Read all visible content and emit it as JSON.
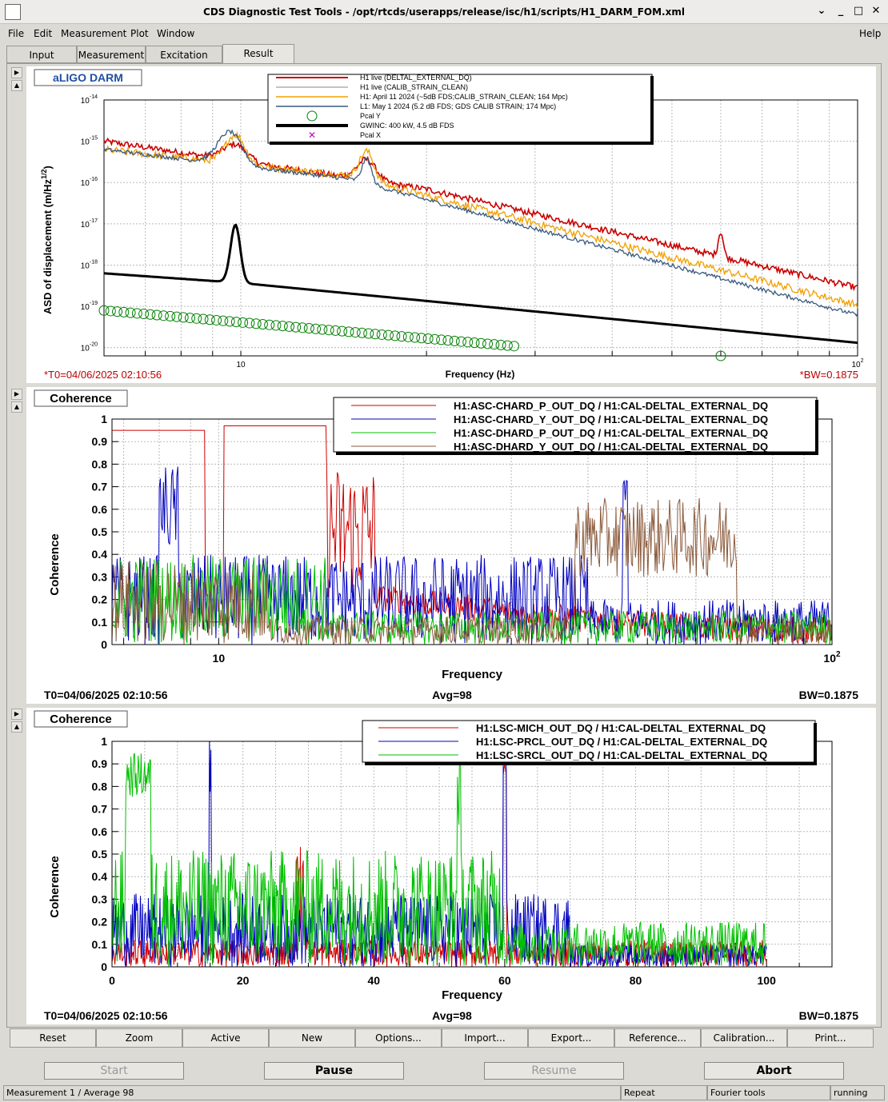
{
  "window": {
    "title": "CDS Diagnostic Test Tools - /opt/rtcds/userapps/release/isc/h1/scripts/H1_DARM_FOM.xml"
  },
  "menu": [
    "File",
    "Edit",
    "Measurement",
    "Plot",
    "Window",
    "Help"
  ],
  "tabs": [
    "Input",
    "Measurement",
    "Excitation",
    "Result"
  ],
  "plot1": {
    "title": "aLIGO DARM",
    "ylabel": "ASD of displacement (m/Hz",
    "ylabel_sup": "1/2",
    "ylabel_end": ")",
    "xlabel": "Frequency (Hz)",
    "t0": "*T0=04/06/2025 02:10:56",
    "bw": "*BW=0.1875",
    "legend": [
      {
        "label": "H1 live (DELTAL_EXTERNAL_DQ)",
        "color": "#c80000"
      },
      {
        "label": "H1 live (CALIB_STRAIN_CLEAN)",
        "color": "#888888"
      },
      {
        "label": "H1: April 11 2024 (~5dB FDS;CALIB_STRAIN_CLEAN; 164 Mpc)",
        "color": "#f0a000"
      },
      {
        "label": "L1: May 1 2024 (5.2 dB FDS; GDS CALIB STRAIN; 174 Mpc)",
        "color": "#3a5a80"
      },
      {
        "label": "Pcal Y",
        "color": "#008000"
      },
      {
        "label": "GWINC: 400 kW, 4.5 dB FDS",
        "color": "#000000"
      },
      {
        "label": "Pcal X",
        "color": "#c000c0"
      }
    ],
    "yticks": [
      "10",
      "10",
      "10",
      "10",
      "10",
      "10",
      "10"
    ],
    "yexp": [
      "-14",
      "-15",
      "-16",
      "-17",
      "-18",
      "-19",
      "-20"
    ],
    "xticks": [
      "10",
      "10"
    ],
    "xexp": [
      "",
      "2"
    ]
  },
  "plot2": {
    "title": "Coherence",
    "ylabel": "Coherence",
    "xlabel": "Frequency",
    "t0": "T0=04/06/2025 02:10:56",
    "avg": "Avg=98",
    "bw": "BW=0.1875",
    "legend": [
      {
        "label": "H1:ASC-CHARD_P_OUT_DQ / H1:CAL-DELTAL_EXTERNAL_DQ",
        "color": "#d00000"
      },
      {
        "label": "H1:ASC-CHARD_Y_OUT_DQ / H1:CAL-DELTAL_EXTERNAL_DQ",
        "color": "#0000c0"
      },
      {
        "label": "H1:ASC-DHARD_P_OUT_DQ / H1:CAL-DELTAL_EXTERNAL_DQ",
        "color": "#00c000"
      },
      {
        "label": "H1:ASC-DHARD_Y_OUT_DQ / H1:CAL-DELTAL_EXTERNAL_DQ",
        "color": "#8b5a3c"
      }
    ],
    "yticks": [
      "1",
      "0.9",
      "0.8",
      "0.7",
      "0.6",
      "0.5",
      "0.4",
      "0.3",
      "0.2",
      "0.1",
      "0"
    ],
    "xticks": [
      "10",
      "10"
    ],
    "xexp": [
      "",
      "2"
    ]
  },
  "plot3": {
    "title": "Coherence",
    "ylabel": "Coherence",
    "xlabel": "Frequency",
    "t0": "T0=04/06/2025 02:10:56",
    "avg": "Avg=98",
    "bw": "BW=0.1875",
    "legend": [
      {
        "label": "H1:LSC-MICH_OUT_DQ / H1:CAL-DELTAL_EXTERNAL_DQ",
        "color": "#d00000"
      },
      {
        "label": "H1:LSC-PRCL_OUT_DQ / H1:CAL-DELTAL_EXTERNAL_DQ",
        "color": "#0000c0"
      },
      {
        "label": "H1:LSC-SRCL_OUT_DQ / H1:CAL-DELTAL_EXTERNAL_DQ",
        "color": "#00c000"
      }
    ],
    "yticks": [
      "1",
      "0.9",
      "0.8",
      "0.7",
      "0.6",
      "0.5",
      "0.4",
      "0.3",
      "0.2",
      "0.1",
      "0"
    ],
    "xticks": [
      "0",
      "20",
      "40",
      "60",
      "80",
      "100"
    ]
  },
  "buttons": [
    "Reset",
    "Zoom",
    "Active",
    "New",
    "Options...",
    "Import...",
    "Export...",
    "Reference...",
    "Calibration...",
    "Print..."
  ],
  "controls": [
    "Start",
    "Pause",
    "Resume",
    "Abort"
  ],
  "status": {
    "left": "Measurement 1 / Average 98",
    "repeat": "Repeat",
    "tools": "Fourier tools",
    "state": "running"
  }
}
